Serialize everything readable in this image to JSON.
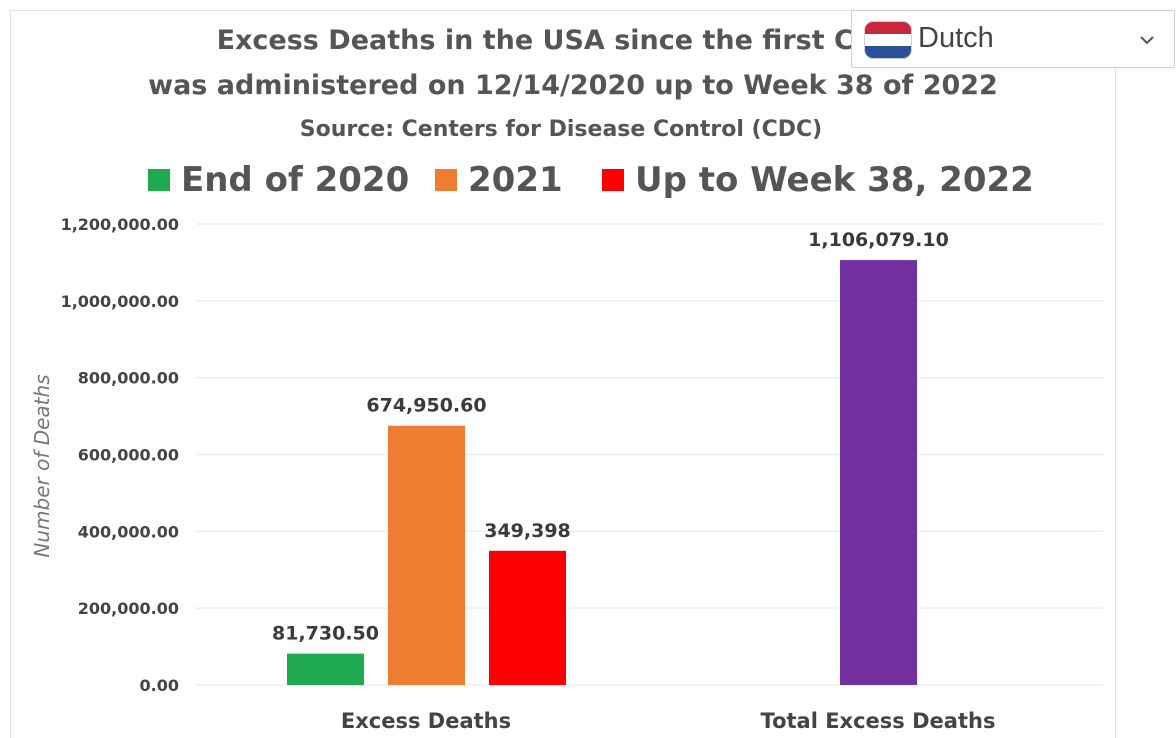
{
  "chart_data": {
    "type": "bar",
    "title_lines": [
      "Excess Deaths in the USA since the first COVID",
      "was administered on  12/14/2020 up to Week 38 of 2022"
    ],
    "subtitle": "Source: Centers for Disease Control (CDC)",
    "ylabel": "Number of Deaths",
    "xlabel": "",
    "ylim": [
      0,
      1200000
    ],
    "ytick_labels": [
      "0.00",
      "200,000.00",
      "400,000.00",
      "600,000.00",
      "800,000.00",
      "1,000,000.00",
      "1,200,000.00"
    ],
    "ytick_values": [
      0,
      200000,
      400000,
      600000,
      800000,
      1000000,
      1200000
    ],
    "grid": true,
    "legend_position": "top",
    "legend": [
      {
        "name": "End of 2020",
        "color": "#1faa50"
      },
      {
        "name": "2021",
        "color": "#ee7d31"
      },
      {
        "name": "Up to Week 38, 2022",
        "color": "#ff0000"
      }
    ],
    "categories": [
      "Excess Deaths",
      "Total Excess Deaths"
    ],
    "bars": [
      {
        "category": "Excess Deaths",
        "series": "End of 2020",
        "value": 81730.5,
        "label": "81,730.50",
        "color": "#1faa50"
      },
      {
        "category": "Excess Deaths",
        "series": "2021",
        "value": 674950.6,
        "label": "674,950.60",
        "color": "#ee7d31"
      },
      {
        "category": "Excess Deaths",
        "series": "Up to Week 38, 2022",
        "value": 349398,
        "label": "349,398",
        "color": "#ff0000"
      },
      {
        "category": "Total Excess Deaths",
        "series": "Total Excess Deaths",
        "value": 1106079.1,
        "label": "1,106,079.10",
        "color": "#7030a0"
      }
    ]
  },
  "language_selector": {
    "selected": "Dutch",
    "flag_icon": "netherlands-flag-icon",
    "chevron_icon": "chevron-down-icon"
  }
}
